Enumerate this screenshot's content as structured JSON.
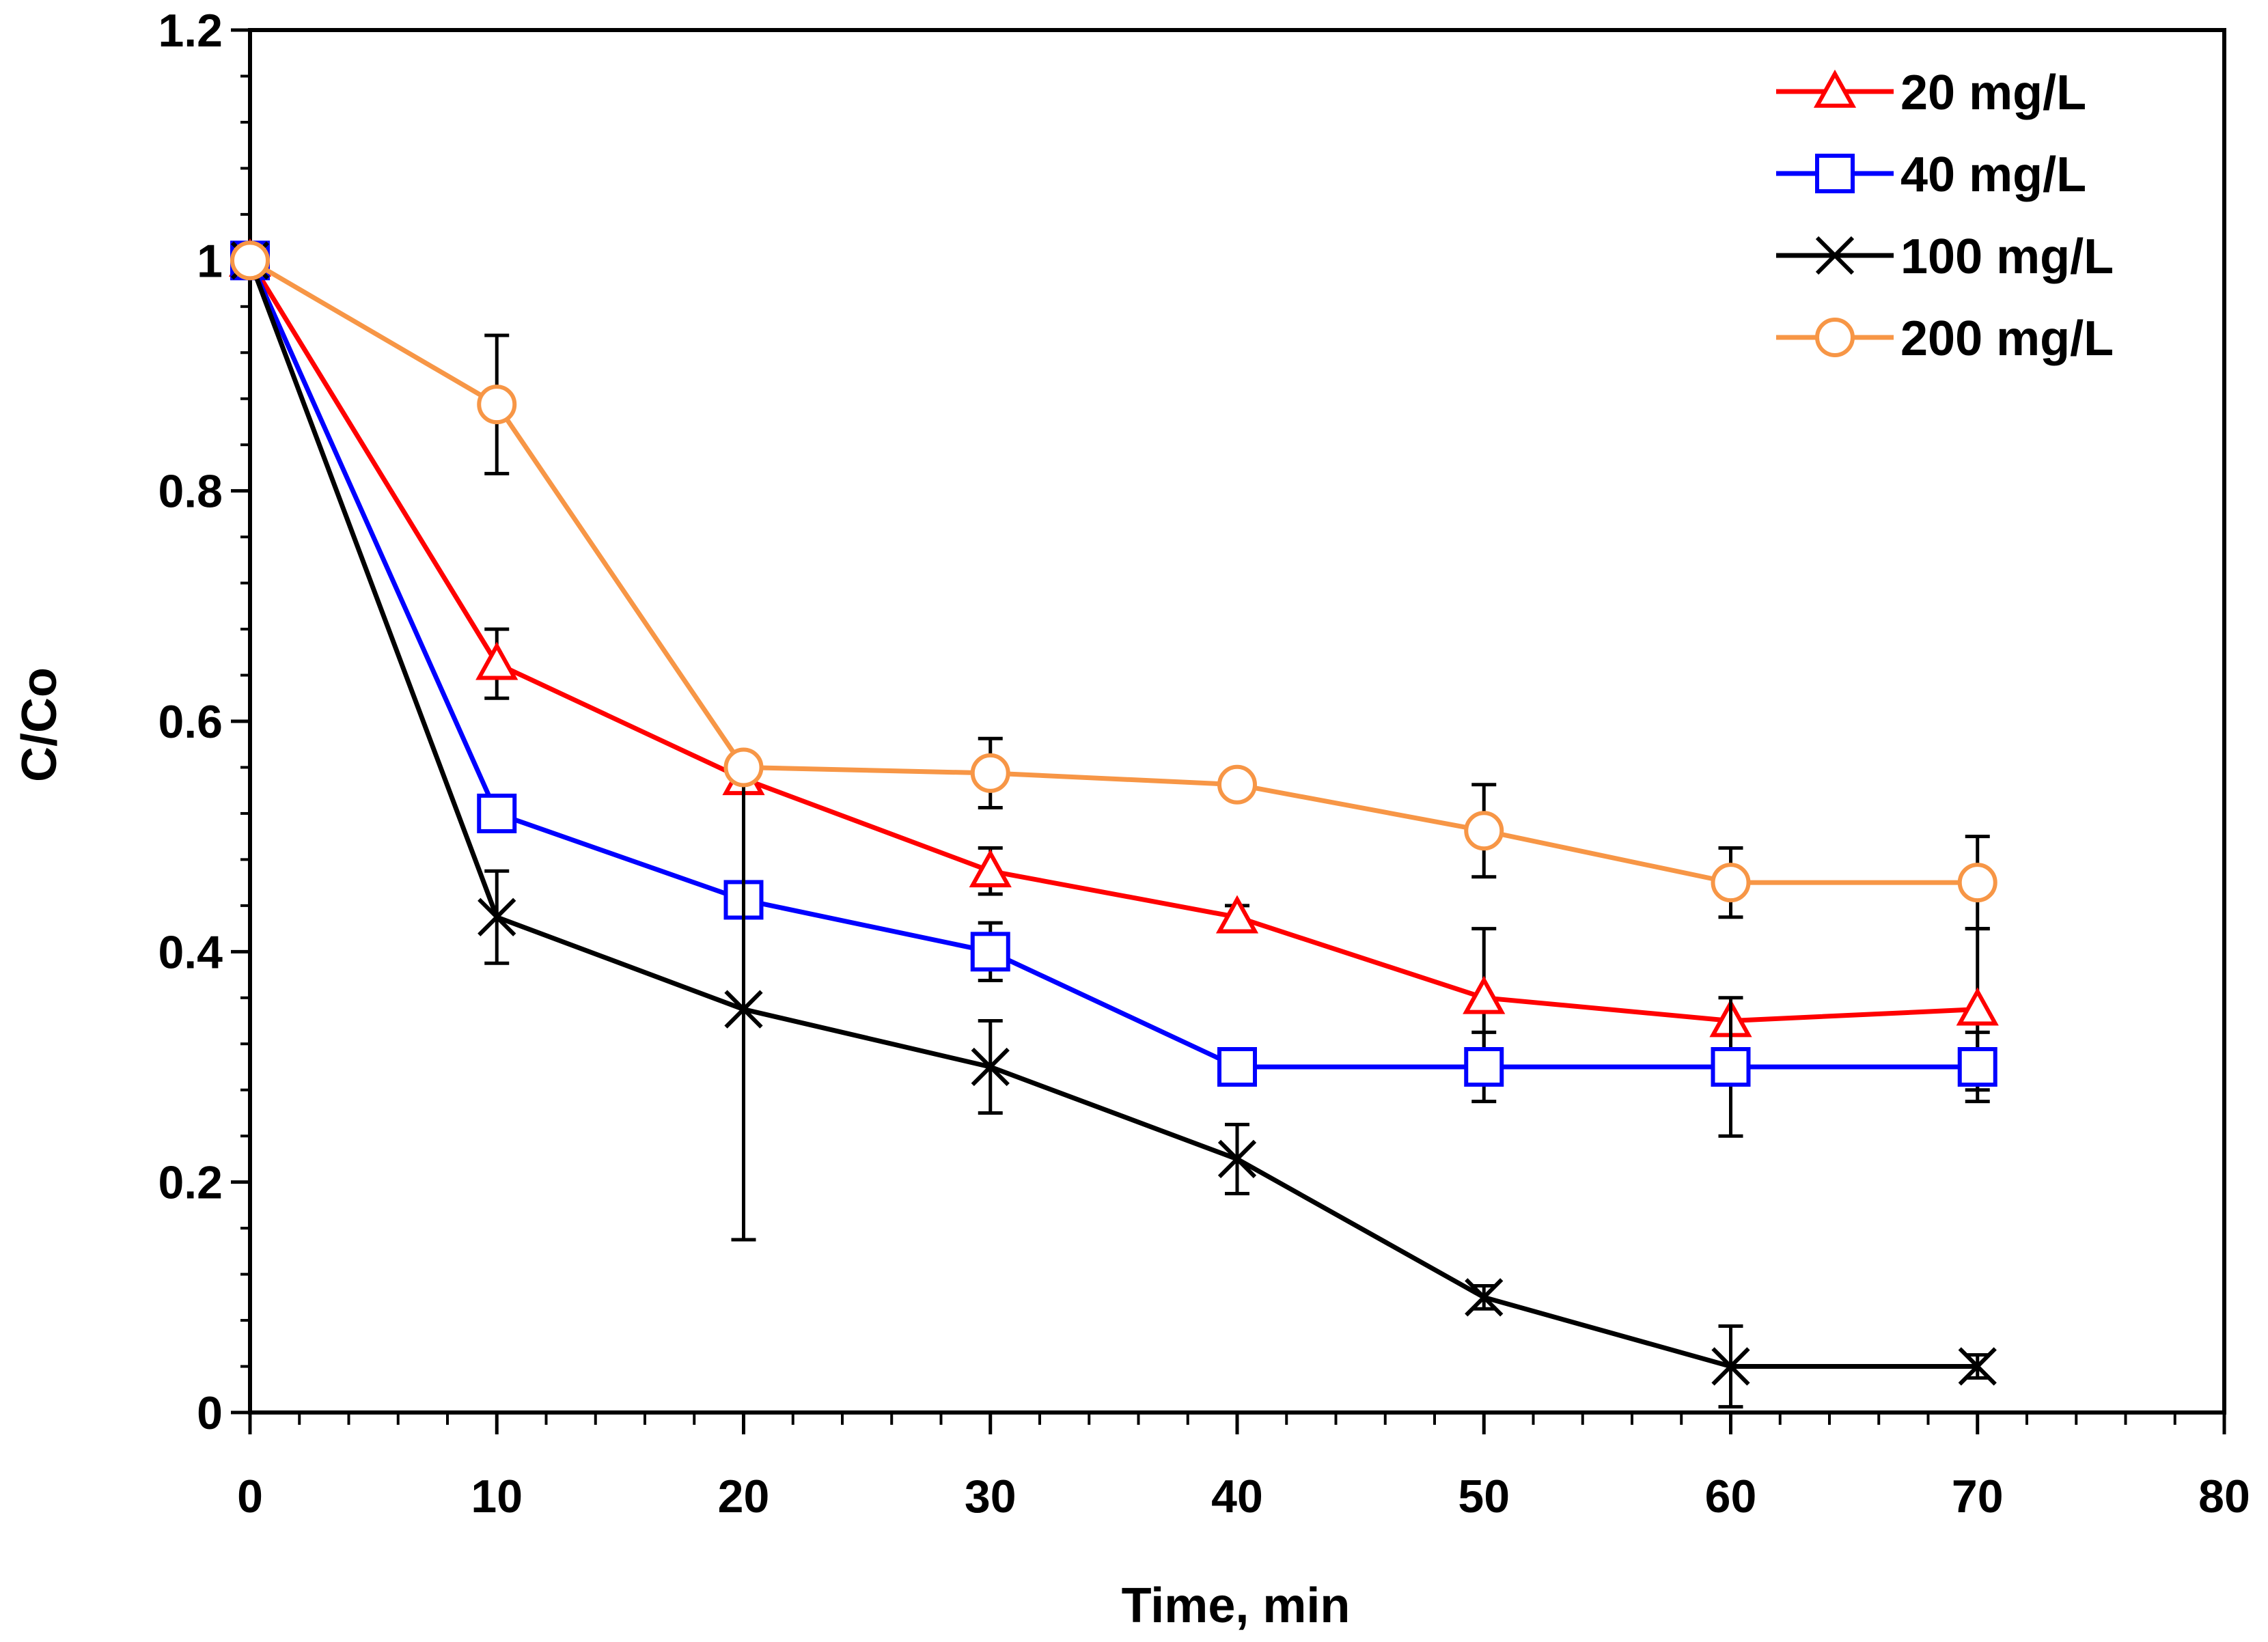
{
  "chart_data": {
    "type": "line",
    "title": "",
    "xlabel": "Time, min",
    "ylabel": "C/Co",
    "xlim": [
      0,
      80
    ],
    "ylim": [
      0,
      1.2
    ],
    "x_ticks": [
      0,
      10,
      20,
      30,
      40,
      50,
      60,
      70,
      80
    ],
    "y_ticks": [
      0,
      0.2,
      0.4,
      0.6,
      0.8,
      1,
      1.2
    ],
    "x_tick_labels": [
      "0",
      "10",
      "20",
      "30",
      "40",
      "50",
      "60",
      "70",
      "80"
    ],
    "y_tick_labels": [
      "0",
      "0.2",
      "0.4",
      "0.6",
      "0.8",
      "1",
      "1.2"
    ],
    "grid": false,
    "legend_position": "top-right",
    "x": [
      0,
      10,
      20,
      30,
      40,
      50,
      60,
      70
    ],
    "series": [
      {
        "name": "20 mg/L",
        "color": "#ff0000",
        "marker": "triangle",
        "values": [
          1.0,
          0.65,
          0.55,
          0.47,
          0.43,
          0.36,
          0.34,
          0.35
        ],
        "errors": [
          0,
          0.03,
          0,
          0.02,
          0.01,
          0.06,
          0,
          0.07
        ]
      },
      {
        "name": "40 mg/L",
        "color": "#0000ff",
        "marker": "square",
        "values": [
          1.0,
          0.52,
          0.445,
          0.4,
          0.3,
          0.3,
          0.3,
          0.3
        ],
        "errors": [
          0,
          0,
          0,
          0.025,
          0,
          0.03,
          0.06,
          0.03
        ]
      },
      {
        "name": "100 mg/L",
        "color": "#000000",
        "marker": "x",
        "values": [
          1.0,
          0.43,
          0.35,
          0.3,
          0.22,
          0.1,
          0.04,
          0.04
        ],
        "errors": [
          0,
          0.04,
          0.2,
          0.04,
          0.03,
          0.01,
          0.035,
          0.01
        ]
      },
      {
        "name": "200 mg/L",
        "color": "#f79646",
        "marker": "circle",
        "values": [
          1.0,
          0.875,
          0.56,
          0.555,
          0.545,
          0.505,
          0.46,
          0.46
        ],
        "errors": [
          0,
          0.06,
          0,
          0.03,
          0.01,
          0.04,
          0.03,
          0.04
        ]
      }
    ]
  }
}
